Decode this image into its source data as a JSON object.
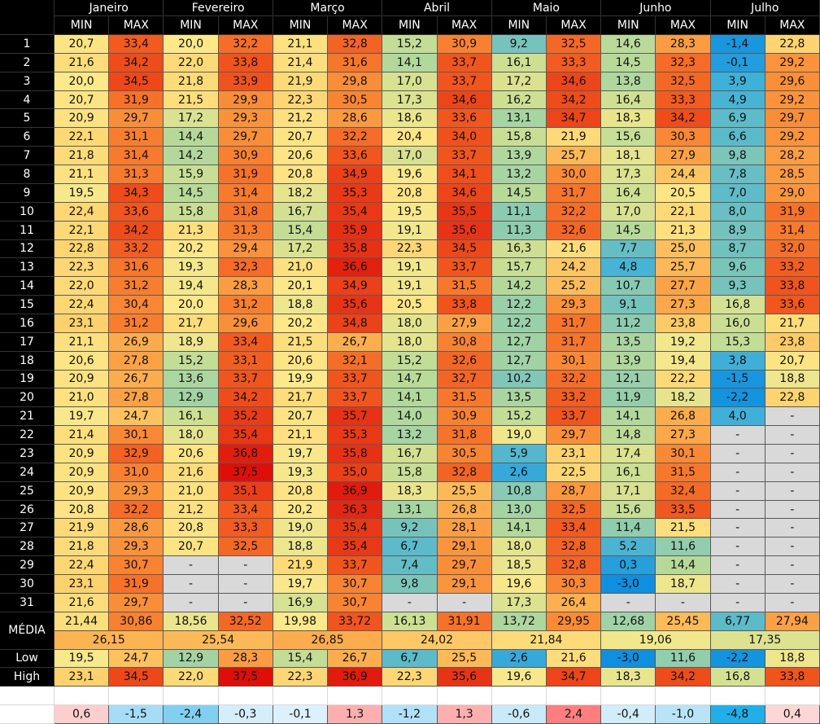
{
  "header": {
    "months": [
      "Janeiro",
      "Fevereiro",
      "Março",
      "Abril",
      "Maio",
      "Junho",
      "Julho"
    ],
    "subheaders": [
      "MIN",
      "MAX"
    ]
  },
  "rows": [
    {
      "label": "1",
      "cells": [
        "20,7",
        "33,4",
        "20,0",
        "32,2",
        "21,1",
        "32,8",
        "15,2",
        "30,9",
        "9,2",
        "32,5",
        "14,6",
        "28,3",
        "-1,4",
        "22,8"
      ]
    },
    {
      "label": "2",
      "cells": [
        "21,6",
        "34,2",
        "22,0",
        "33,8",
        "21,4",
        "31,6",
        "14,1",
        "33,7",
        "16,1",
        "33,3",
        "14,5",
        "32,3",
        "-0,1",
        "29,2"
      ]
    },
    {
      "label": "3",
      "cells": [
        "20,0",
        "34,5",
        "21,8",
        "33,9",
        "21,9",
        "29,8",
        "17,0",
        "33,7",
        "17,2",
        "34,6",
        "13,8",
        "32,5",
        "3,9",
        "29,6"
      ]
    },
    {
      "label": "4",
      "cells": [
        "20,7",
        "31,9",
        "21,5",
        "29,9",
        "22,3",
        "30,5",
        "17,3",
        "34,6",
        "16,2",
        "34,2",
        "16,4",
        "33,3",
        "4,9",
        "29,2"
      ]
    },
    {
      "label": "5",
      "cells": [
        "20,9",
        "29,7",
        "17,2",
        "29,3",
        "21,2",
        "28,6",
        "18,6",
        "33,6",
        "13,1",
        "34,7",
        "18,3",
        "34,2",
        "6,9",
        "29,7"
      ]
    },
    {
      "label": "6",
      "cells": [
        "22,1",
        "31,1",
        "14,4",
        "29,7",
        "20,7",
        "32,2",
        "20,4",
        "34,0",
        "15,8",
        "21,9",
        "15,6",
        "30,3",
        "6,6",
        "29,2"
      ]
    },
    {
      "label": "7",
      "cells": [
        "21,8",
        "31,4",
        "14,2",
        "30,9",
        "20,6",
        "33,6",
        "17,0",
        "33,7",
        "13,9",
        "25,7",
        "18,1",
        "27,9",
        "9,8",
        "28,2"
      ]
    },
    {
      "label": "8",
      "cells": [
        "21,1",
        "31,3",
        "15,9",
        "31,9",
        "20,8",
        "34,9",
        "19,6",
        "34,1",
        "13,2",
        "30,0",
        "17,3",
        "24,4",
        "7,8",
        "28,5"
      ]
    },
    {
      "label": "9",
      "cells": [
        "19,5",
        "34,3",
        "14,5",
        "31,4",
        "18,2",
        "35,3",
        "20,8",
        "34,6",
        "14,5",
        "31,7",
        "16,4",
        "20,5",
        "7,0",
        "29,0"
      ]
    },
    {
      "label": "10",
      "cells": [
        "22,4",
        "33,6",
        "15,8",
        "31,8",
        "16,7",
        "35,4",
        "19,5",
        "35,5",
        "11,1",
        "32,2",
        "17,0",
        "22,1",
        "8,0",
        "31,9"
      ]
    },
    {
      "label": "11",
      "cells": [
        "22,1",
        "34,2",
        "21,3",
        "31,3",
        "15,4",
        "35,9",
        "19,1",
        "35,6",
        "11,3",
        "32,6",
        "14,5",
        "21,3",
        "8,9",
        "31,4"
      ]
    },
    {
      "label": "12",
      "cells": [
        "22,8",
        "33,2",
        "20,2",
        "29,4",
        "17,2",
        "35,8",
        "22,3",
        "34,5",
        "16,3",
        "21,6",
        "7,7",
        "25,0",
        "8,7",
        "32,0"
      ]
    },
    {
      "label": "13",
      "cells": [
        "22,3",
        "31,6",
        "19,3",
        "32,3",
        "21,0",
        "36,6",
        "19,1",
        "33,7",
        "15,7",
        "24,2",
        "4,8",
        "25,7",
        "9,6",
        "33,2"
      ]
    },
    {
      "label": "14",
      "cells": [
        "22,0",
        "31,2",
        "19,4",
        "28,3",
        "20,1",
        "34,9",
        "19,1",
        "31,5",
        "14,2",
        "25,2",
        "10,7",
        "27,7",
        "9,3",
        "33,8"
      ]
    },
    {
      "label": "15",
      "cells": [
        "22,4",
        "30,4",
        "20,0",
        "31,2",
        "18,8",
        "35,6",
        "20,5",
        "33,8",
        "12,2",
        "29,3",
        "9,1",
        "27,3",
        "16,8",
        "33,6"
      ]
    },
    {
      "label": "16",
      "cells": [
        "23,1",
        "31,2",
        "21,7",
        "29,6",
        "20,2",
        "34,8",
        "18,0",
        "27,9",
        "12,2",
        "31,7",
        "11,2",
        "23,8",
        "16,0",
        "21,7"
      ]
    },
    {
      "label": "17",
      "cells": [
        "21,1",
        "26,9",
        "18,9",
        "33,4",
        "21,5",
        "26,7",
        "18,0",
        "30,8",
        "12,7",
        "31,7",
        "13,5",
        "19,2",
        "15,3",
        "23,8"
      ]
    },
    {
      "label": "18",
      "cells": [
        "20,6",
        "27,8",
        "15,2",
        "33,1",
        "20,6",
        "32,1",
        "15,2",
        "32,6",
        "12,7",
        "30,1",
        "13,9",
        "19,4",
        "3,8",
        "20,7"
      ]
    },
    {
      "label": "19",
      "cells": [
        "20,9",
        "26,7",
        "13,6",
        "33,7",
        "19,9",
        "33,7",
        "14,7",
        "32,7",
        "10,2",
        "32,2",
        "12,1",
        "22,2",
        "-1,5",
        "18,8"
      ]
    },
    {
      "label": "20",
      "cells": [
        "21,0",
        "27,8",
        "12,9",
        "34,2",
        "21,7",
        "33,7",
        "14,1",
        "31,5",
        "13,5",
        "33,2",
        "11,9",
        "18,2",
        "-2,2",
        "22,8"
      ]
    },
    {
      "label": "21",
      "cells": [
        "19,7",
        "24,7",
        "16,1",
        "35,2",
        "20,7",
        "35,7",
        "14,0",
        "30,9",
        "15,2",
        "33,7",
        "14,1",
        "26,8",
        "4,0",
        "-"
      ]
    },
    {
      "label": "22",
      "cells": [
        "21,4",
        "30,1",
        "18,0",
        "35,4",
        "21,1",
        "35,3",
        "13,2",
        "31,8",
        "19,0",
        "29,7",
        "14,8",
        "27,3",
        "-",
        "-"
      ]
    },
    {
      "label": "23",
      "cells": [
        "20,9",
        "32,9",
        "20,6",
        "36,8",
        "19,7",
        "35,8",
        "16,7",
        "30,5",
        "5,9",
        "23,1",
        "17,4",
        "30,1",
        "-",
        "-"
      ]
    },
    {
      "label": "24",
      "cells": [
        "20,9",
        "31,0",
        "21,6",
        "37,5",
        "19,3",
        "35,0",
        "15,8",
        "32,8",
        "2,6",
        "22,5",
        "16,1",
        "31,5",
        "-",
        "-"
      ]
    },
    {
      "label": "25",
      "cells": [
        "20,9",
        "29,3",
        "21,0",
        "35,1",
        "20,8",
        "36,9",
        "18,3",
        "25,5",
        "10,8",
        "28,7",
        "17,1",
        "32,4",
        "-",
        "-"
      ]
    },
    {
      "label": "26",
      "cells": [
        "20,8",
        "32,2",
        "21,2",
        "33,4",
        "20,2",
        "36,3",
        "13,1",
        "26,8",
        "13,0",
        "32,5",
        "15,6",
        "33,5",
        "-",
        "-"
      ]
    },
    {
      "label": "27",
      "cells": [
        "21,9",
        "28,6",
        "20,8",
        "33,3",
        "19,0",
        "35,4",
        "9,2",
        "28,1",
        "14,1",
        "33,4",
        "11,4",
        "21,5",
        "-",
        "-"
      ]
    },
    {
      "label": "28",
      "cells": [
        "21,8",
        "29,3",
        "20,7",
        "32,5",
        "18,8",
        "35,4",
        "6,7",
        "29,1",
        "18,0",
        "32,8",
        "5,2",
        "11,6",
        "-",
        "-"
      ]
    },
    {
      "label": "29",
      "cells": [
        "22,4",
        "30,7",
        "-",
        "-",
        "21,9",
        "33,7",
        "7,4",
        "29,7",
        "18,5",
        "32,8",
        "0,3",
        "14,4",
        "-",
        "-"
      ]
    },
    {
      "label": "30",
      "cells": [
        "23,1",
        "31,9",
        "-",
        "-",
        "19,7",
        "30,7",
        "9,8",
        "29,1",
        "19,6",
        "30,3",
        "-3,0",
        "18,7",
        "-",
        "-"
      ]
    },
    {
      "label": "31",
      "cells": [
        "21,6",
        "29,7",
        "-",
        "-",
        "16,9",
        "30,7",
        "-",
        "-",
        "17,3",
        "26,4",
        "-",
        "-",
        "-",
        "-"
      ]
    }
  ],
  "media": {
    "label": "MÉDIA",
    "cells": [
      "21,44",
      "30,86",
      "18,56",
      "32,52",
      "19,98",
      "33,72",
      "16,13",
      "31,91",
      "13,72",
      "29,95",
      "12,68",
      "25,45",
      "6,77",
      "27,94"
    ],
    "means": [
      "26,15",
      "25,54",
      "26,85",
      "24,02",
      "21,84",
      "19,06",
      "17,35"
    ]
  },
  "low": {
    "label": "Low",
    "cells": [
      "19,5",
      "24,7",
      "12,9",
      "28,3",
      "15,4",
      "26,7",
      "6,7",
      "25,5",
      "2,6",
      "21,6",
      "-3,0",
      "11,6",
      "-2,2",
      "18,8"
    ]
  },
  "high": {
    "label": "High",
    "cells": [
      "23,1",
      "34,5",
      "22,0",
      "37,5",
      "22,3",
      "36,9",
      "22,3",
      "35,6",
      "19,6",
      "34,7",
      "18,3",
      "34,2",
      "16,8",
      "33,8"
    ]
  },
  "diff": {
    "cells": [
      "0,6",
      "-1,5",
      "-2,4",
      "-0,3",
      "-0,1",
      "1,3",
      "-1,2",
      "1,3",
      "-0,6",
      "2,4",
      "-0,4",
      "-1,0",
      "-4,8",
      "0,4"
    ]
  }
}
